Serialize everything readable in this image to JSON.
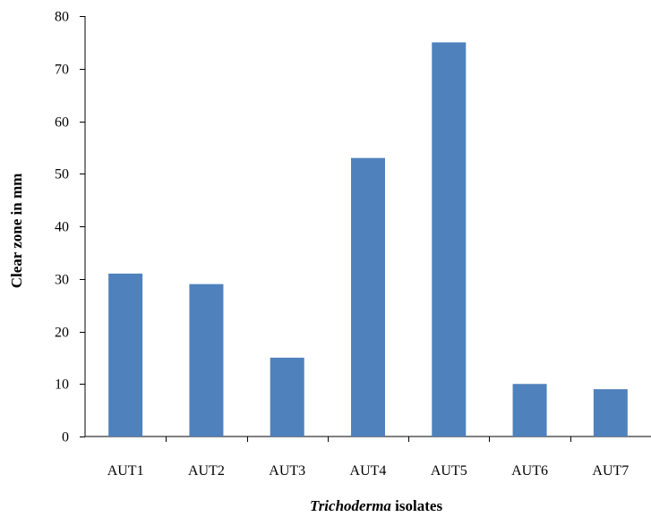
{
  "chart_data": {
    "type": "bar",
    "categories": [
      "AUT1",
      "AUT2",
      "AUT3",
      "AUT4",
      "AUT5",
      "AUT6",
      "AUT7"
    ],
    "values": [
      31,
      29,
      15,
      53,
      75,
      10,
      9
    ],
    "title": "",
    "xlabel_italic": "Trichoderma",
    "xlabel_rest": " isolates",
    "ylabel": "Clear zone in mm",
    "ylim": [
      0,
      80
    ],
    "yticks": [
      "0",
      "10",
      "20",
      "30",
      "40",
      "50",
      "60",
      "70",
      "80"
    ],
    "bar_color": "#4F81BD",
    "grid": false,
    "legend": "none"
  }
}
